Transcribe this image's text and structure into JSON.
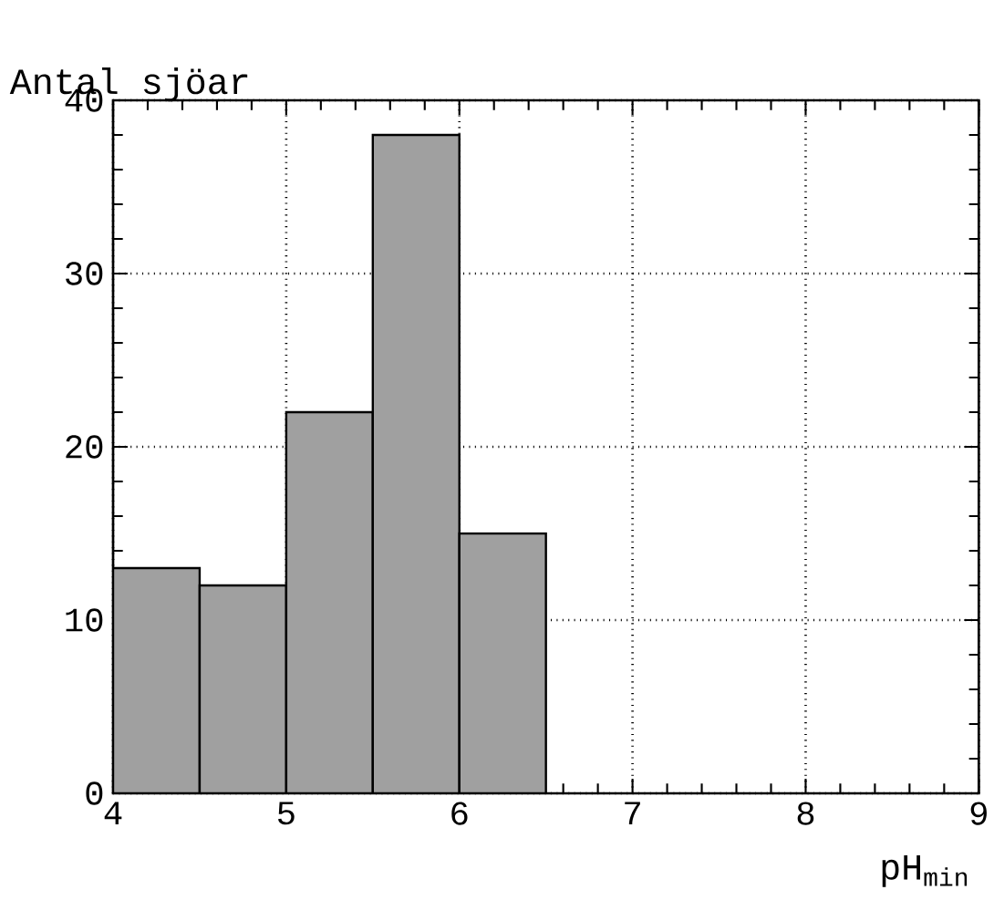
{
  "chart_data": {
    "type": "histogram",
    "xlabel": "pH$_{min}$",
    "ylabel": "Antal sjöar",
    "bins": [
      4,
      4.5,
      5,
      5.5,
      6,
      6.5
    ],
    "values": [
      13,
      12,
      22,
      38,
      15
    ],
    "color": "#a0a0a0",
    "xlim": [
      4,
      9
    ],
    "ylim": [
      0,
      40
    ],
    "xticks": [
      4,
      5,
      6,
      7,
      8,
      9
    ],
    "yticks": [
      0,
      10,
      20,
      30,
      40
    ],
    "grid": true
  }
}
